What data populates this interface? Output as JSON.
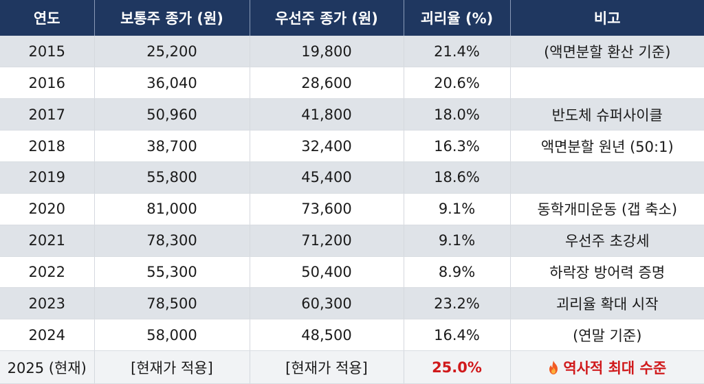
{
  "table": {
    "headers": [
      "연도",
      "보통주 종가 (원)",
      "우선주 종가 (원)",
      "괴리율 (%)",
      "비고"
    ],
    "rows": [
      {
        "year": "2015",
        "common": "25,200",
        "preferred": "19,800",
        "gap": "21.4%",
        "note": "(액면분할 환산 기준)"
      },
      {
        "year": "2016",
        "common": "36,040",
        "preferred": "28,600",
        "gap": "20.6%",
        "note": ""
      },
      {
        "year": "2017",
        "common": "50,960",
        "preferred": "41,800",
        "gap": "18.0%",
        "note": "반도체 슈퍼사이클"
      },
      {
        "year": "2018",
        "common": "38,700",
        "preferred": "32,400",
        "gap": "16.3%",
        "note": "액면분할 원년 (50:1)"
      },
      {
        "year": "2019",
        "common": "55,800",
        "preferred": "45,400",
        "gap": "18.6%",
        "note": ""
      },
      {
        "year": "2020",
        "common": "81,000",
        "preferred": "73,600",
        "gap": "9.1%",
        "note": "동학개미운동 (갭 축소)"
      },
      {
        "year": "2021",
        "common": "78,300",
        "preferred": "71,200",
        "gap": "9.1%",
        "note": "우선주 초강세"
      },
      {
        "year": "2022",
        "common": "55,300",
        "preferred": "50,400",
        "gap": "8.9%",
        "note": "하락장 방어력 증명"
      },
      {
        "year": "2023",
        "common": "78,500",
        "preferred": "60,300",
        "gap": "23.2%",
        "note": "괴리율 확대 시작"
      },
      {
        "year": "2024",
        "common": "58,000",
        "preferred": "48,500",
        "gap": "16.4%",
        "note": "(연말 기준)"
      },
      {
        "year": "2025 (현재)",
        "common": "[현재가 적용]",
        "preferred": "[현재가 적용]",
        "gap": "25.0%",
        "note": "역사적 최대 수준"
      }
    ]
  },
  "icons": {
    "note_current": "fire-icon"
  },
  "colors": {
    "header_bg": "#1f3760",
    "header_text": "#ffffff",
    "row_shade": "#dfe3e8",
    "row_plain": "#ffffff",
    "highlight_red": "#d0191b"
  }
}
